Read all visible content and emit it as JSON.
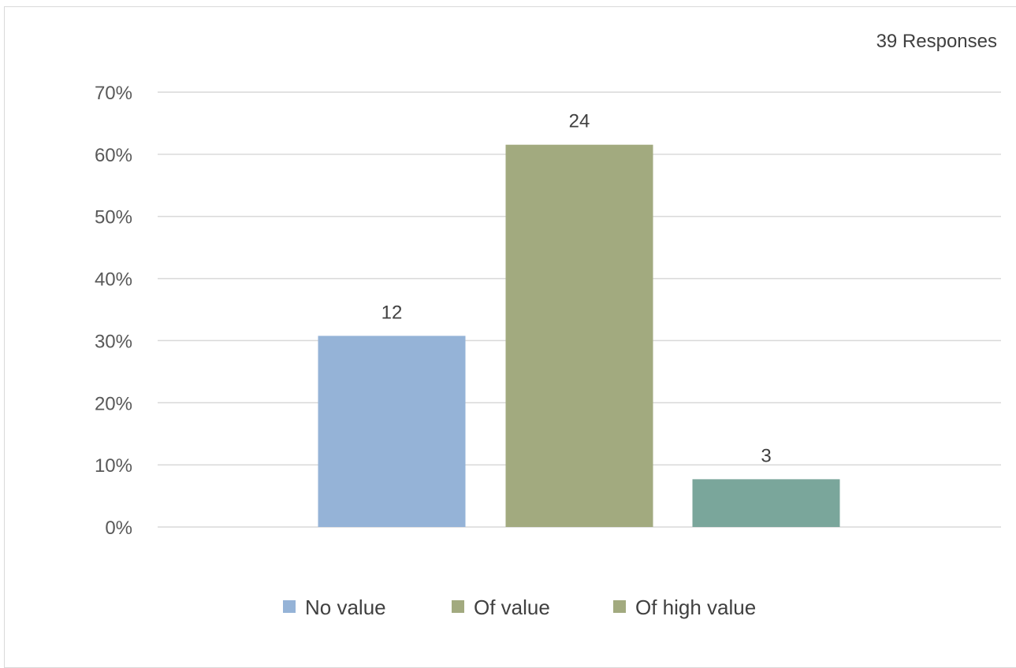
{
  "annotation": "39 Responses",
  "chart_data": {
    "type": "bar",
    "title": "",
    "xlabel": "",
    "ylabel": "",
    "ylim": [
      0,
      0.7
    ],
    "y_tick_values": [
      0,
      0.1,
      0.2,
      0.3,
      0.4,
      0.5,
      0.6,
      0.7
    ],
    "y_tick_labels": [
      "0%",
      "10%",
      "20%",
      "30%",
      "40%",
      "50%",
      "60%",
      "70%"
    ],
    "grid": true,
    "legend_position": "bottom",
    "total_responses": 39,
    "series": [
      {
        "name": "No value",
        "value": 0.3077,
        "count_label": "12",
        "color": "#95b3d7"
      },
      {
        "name": "Of value",
        "value": 0.6154,
        "count_label": "24",
        "color": "#a2aa7f"
      },
      {
        "name": "Of high value",
        "value": 0.0769,
        "count_label": "3",
        "color": "#7aa69b"
      }
    ],
    "legend_swatch_colors": [
      "#95b3d7",
      "#a2aa7f",
      "#a2aa7f"
    ],
    "gridline_color": "#d9d9d9"
  }
}
